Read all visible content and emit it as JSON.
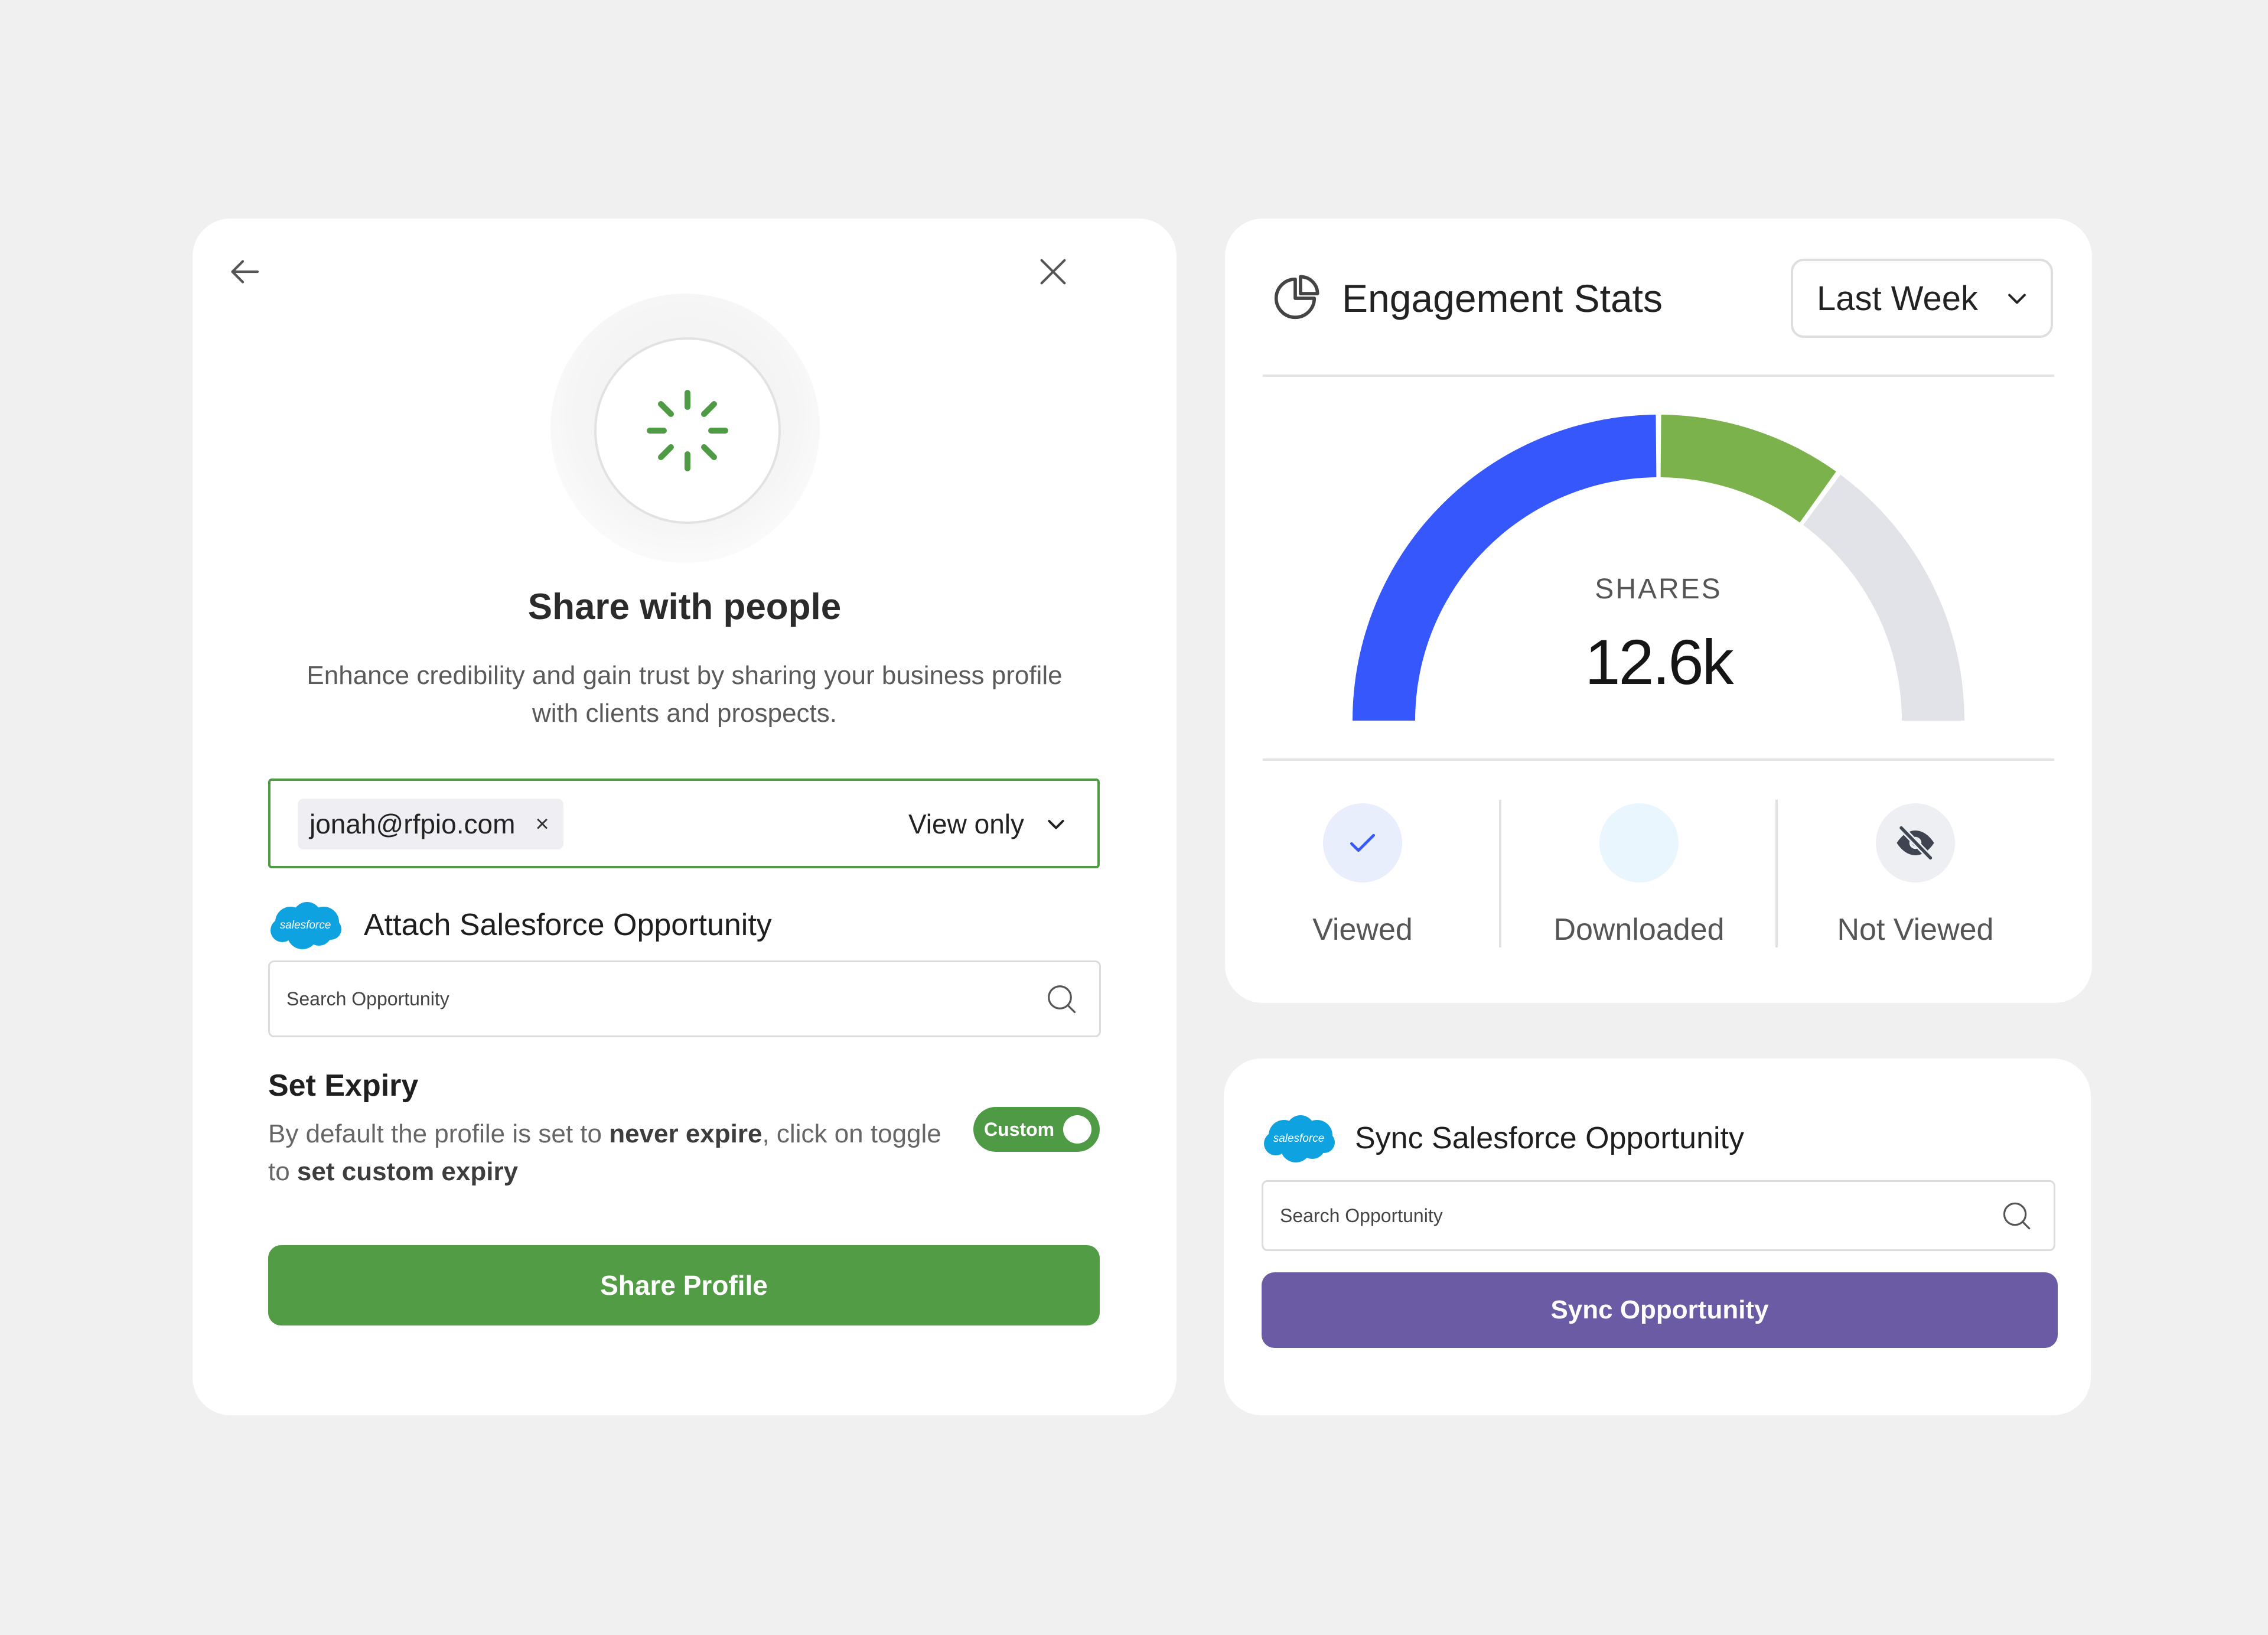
{
  "share": {
    "title": "Share with people",
    "description": "Enhance credibility and gain trust by sharing your business profile with clients and prospects.",
    "email_chip": "jonah@rfpio.com",
    "chip_remove": "×",
    "permission": "View only",
    "attach_label": "Attach Salesforce Opportunity",
    "salesforce_logo_text": "salesforce",
    "search_placeholder": "Search Opportunity",
    "expiry_title": "Set Expiry",
    "expiry_desc_1": "By default the profile is set to ",
    "expiry_desc_bold_1": "never expire",
    "expiry_desc_2": ", click on toggle to ",
    "expiry_desc_bold_2": "set custom expiry",
    "toggle_label": "Custom",
    "toggle_on": true,
    "button_label": "Share Profile"
  },
  "engagement": {
    "title": "Engagement Stats",
    "range": "Last Week",
    "center_label": "SHARES",
    "center_value": "12.6k",
    "stats": [
      {
        "label": "Viewed",
        "icon": "check-icon"
      },
      {
        "label": "Downloaded",
        "icon": "none"
      },
      {
        "label": "Not Viewed",
        "icon": "eye-off-icon"
      }
    ]
  },
  "chart_data": {
    "type": "gauge",
    "series": [
      {
        "name": "Viewed",
        "value": 50,
        "color": "#3557fb"
      },
      {
        "name": "Downloaded",
        "value": 20,
        "color": "#7bb24c"
      },
      {
        "name": "Not Viewed",
        "value": 30,
        "color": "#e1e3e8"
      }
    ]
  },
  "sync": {
    "title": "Sync Salesforce Opportunity",
    "salesforce_logo_text": "salesforce",
    "search_placeholder": "Search Opportunity",
    "button_label": "Sync Opportunity"
  },
  "colors": {
    "primary_green": "#529c46",
    "primary_purple": "#6b5aa4",
    "viewed_blue": "#3557fb",
    "page_bg": "#f0f0f0"
  }
}
